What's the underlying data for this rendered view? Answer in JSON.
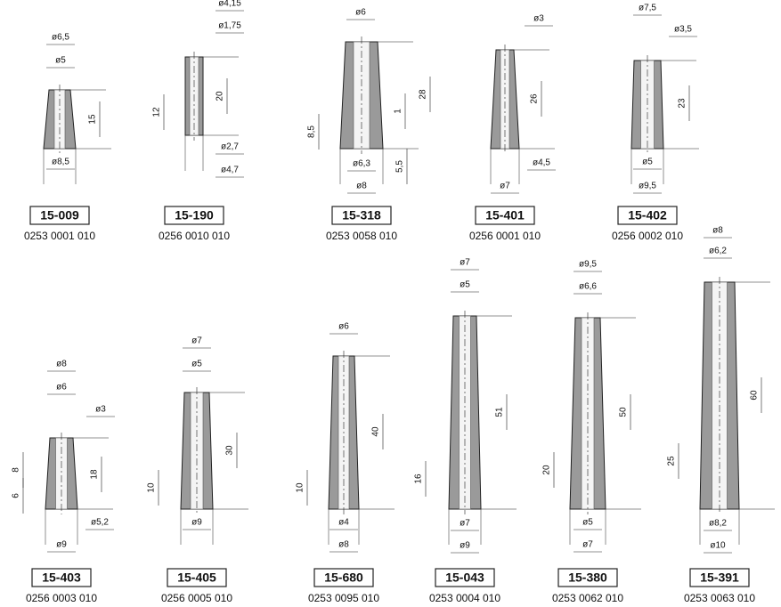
{
  "items": [
    {
      "number": "15-009",
      "code": "0253 0001 010",
      "dims": [
        "ø6,5",
        "ø5",
        "15",
        "ø8,5"
      ]
    },
    {
      "number": "15-190",
      "code": "0256 0010 010",
      "dims": [
        "ø4,15",
        "ø1,75",
        "20",
        "12",
        "ø2,7",
        "ø4,7"
      ]
    },
    {
      "number": "15-318",
      "code": "0253 0058 010",
      "dims": [
        "ø6",
        "28",
        "1",
        "8,5",
        "ø6,3",
        "5,5",
        "ø8"
      ]
    },
    {
      "number": "15-401",
      "code": "0256 0001 010",
      "dims": [
        "ø3",
        "26",
        "ø4,5",
        "ø7"
      ]
    },
    {
      "number": "15-402",
      "code": "0256 0002 010",
      "dims": [
        "ø7,5",
        "ø3,5",
        "23",
        "ø5",
        "ø9,5"
      ]
    },
    {
      "number": "15-403",
      "code": "0256 0003 010",
      "dims": [
        "ø8",
        "ø6",
        "ø3",
        "8",
        "18",
        "6",
        "ø5,2",
        "ø9"
      ]
    },
    {
      "number": "15-405",
      "code": "0256 0005 010",
      "dims": [
        "ø7",
        "ø5",
        "30",
        "10",
        "ø9"
      ]
    },
    {
      "number": "15-680",
      "code": "0253 0095 010",
      "dims": [
        "ø6",
        "40",
        "10",
        "ø4",
        "ø8"
      ]
    },
    {
      "number": "15-043",
      "code": "0253 0004 010",
      "dims": [
        "ø7",
        "ø5",
        "51",
        "16",
        "ø7",
        "ø9"
      ]
    },
    {
      "number": "15-380",
      "code": "0253 0062 010",
      "dims": [
        "ø9,5",
        "ø6,6",
        "50",
        "20",
        "ø5",
        "ø7"
      ]
    },
    {
      "number": "15-391",
      "code": "0253 0063 010",
      "dims": [
        "ø8",
        "ø6,2",
        "60",
        "25",
        "ø8,2",
        "ø10"
      ]
    }
  ]
}
